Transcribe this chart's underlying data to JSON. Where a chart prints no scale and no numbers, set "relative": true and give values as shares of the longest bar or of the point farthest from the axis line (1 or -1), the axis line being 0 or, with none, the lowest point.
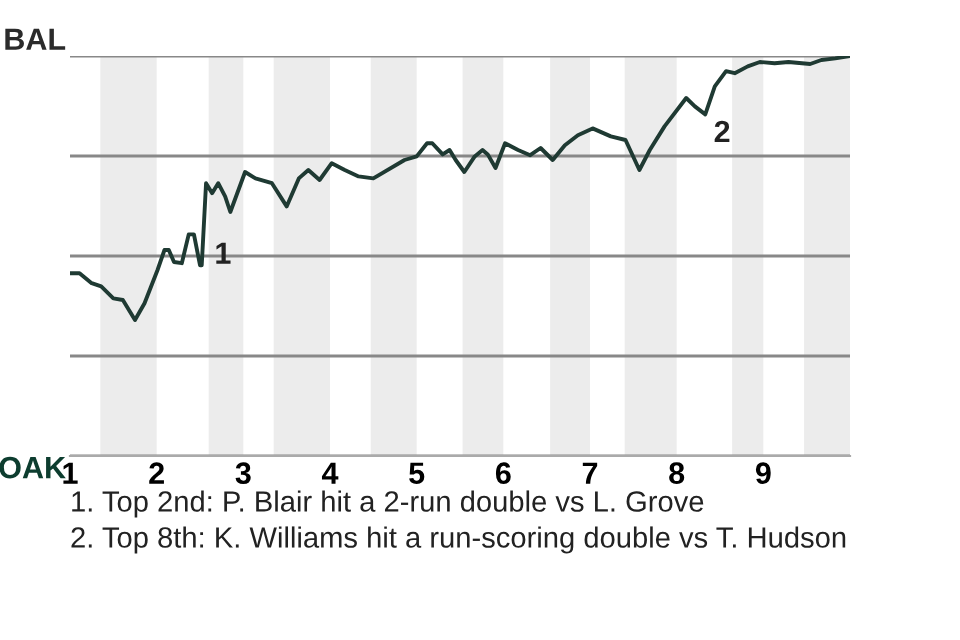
{
  "chart_data": {
    "type": "line",
    "relative": true,
    "x": [
      1.0,
      1.11,
      1.25,
      1.36,
      1.5,
      1.61,
      1.75,
      1.86,
      2.01,
      2.09,
      2.14,
      2.2,
      2.29,
      2.37,
      2.43,
      2.5,
      2.52,
      2.57,
      2.64,
      2.71,
      2.79,
      2.85,
      3.02,
      3.14,
      3.33,
      3.5,
      3.64,
      3.75,
      3.88,
      4.02,
      4.17,
      4.33,
      4.5,
      4.86,
      5.0,
      5.12,
      5.18,
      5.3,
      5.38,
      5.45,
      5.55,
      5.67,
      5.76,
      5.82,
      5.91,
      6.02,
      6.17,
      6.31,
      6.43,
      6.57,
      6.71,
      6.86,
      7.03,
      7.24,
      7.41,
      7.57,
      7.69,
      7.86,
      8.11,
      8.21,
      8.33,
      8.44,
      8.57,
      8.67,
      8.82,
      8.96,
      9.13,
      9.29,
      9.54,
      9.67,
      9.83,
      10.0
    ],
    "series": [
      {
        "color": "#1f3a33",
        "values": [
          0.457,
          0.457,
          0.432,
          0.424,
          0.394,
          0.39,
          0.34,
          0.382,
          0.465,
          0.515,
          0.515,
          0.485,
          0.482,
          0.554,
          0.554,
          0.477,
          0.477,
          0.682,
          0.657,
          0.682,
          0.649,
          0.61,
          0.71,
          0.694,
          0.682,
          0.624,
          0.694,
          0.715,
          0.69,
          0.732,
          0.715,
          0.699,
          0.694,
          0.74,
          0.749,
          0.782,
          0.782,
          0.754,
          0.765,
          0.74,
          0.71,
          0.749,
          0.765,
          0.754,
          0.72,
          0.782,
          0.765,
          0.752,
          0.77,
          0.74,
          0.777,
          0.802,
          0.819,
          0.799,
          0.79,
          0.715,
          0.765,
          0.824,
          0.895,
          0.874,
          0.854,
          0.924,
          0.962,
          0.957,
          0.974,
          0.985,
          0.982,
          0.985,
          0.98,
          0.99,
          0.994,
          1.0
        ]
      }
    ],
    "xlim": [
      1,
      10
    ],
    "xticks": [
      1,
      2,
      3,
      4,
      5,
      6,
      7,
      8,
      9
    ],
    "grid": "y",
    "bands": [
      {
        "axis": "x",
        "from": 1.35,
        "to": 2.0,
        "color": "#ececec"
      },
      {
        "axis": "x",
        "from": 2.6,
        "to": 3.0,
        "color": "#ececec"
      },
      {
        "axis": "x",
        "from": 3.35,
        "to": 4.0,
        "color": "#ececec"
      },
      {
        "axis": "x",
        "from": 4.47,
        "to": 5.0,
        "color": "#ececec"
      },
      {
        "axis": "x",
        "from": 5.53,
        "to": 6.0,
        "color": "#ececec"
      },
      {
        "axis": "x",
        "from": 6.54,
        "to": 7.0,
        "color": "#ececec"
      },
      {
        "axis": "x",
        "from": 7.4,
        "to": 8.0,
        "color": "#ececec"
      },
      {
        "axis": "x",
        "from": 8.64,
        "to": 9.0,
        "color": "#ececec"
      },
      {
        "axis": "x",
        "from": 9.47,
        "to": 10.0,
        "color": "#ececec"
      }
    ],
    "annotations": [
      "BAL",
      "OAK",
      {
        "text": "1",
        "x": 2.57,
        "y": 0.55
      },
      {
        "text": "2",
        "x": 8.33,
        "y": 0.854
      },
      "1. Top 2nd: P. Blair hit a 2-run double vs L. Grove",
      "2. Top 8th: K. Williams hit a run-scoring double vs T. Hudson"
    ]
  }
}
